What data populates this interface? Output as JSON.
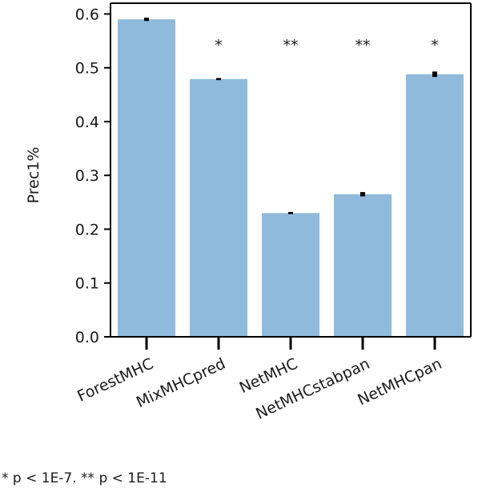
{
  "chart_data": {
    "type": "bar",
    "title": "",
    "xlabel": "",
    "ylabel": "Prec1%",
    "ylim": [
      0,
      0.62
    ],
    "yticks": [
      "0.0",
      "0.1",
      "0.2",
      "0.3",
      "0.4",
      "0.5",
      "0.6"
    ],
    "categories": [
      "ForestMHC",
      "MixMHCpred",
      "NetMHC",
      "NetMHCstabpan",
      "NetMHCpan"
    ],
    "values": [
      0.59,
      0.479,
      0.23,
      0.265,
      0.488
    ],
    "error": [
      0.003,
      0.002,
      0.002,
      0.004,
      0.005
    ],
    "significance": [
      "",
      "*",
      "**",
      "**",
      "*"
    ],
    "grid": false,
    "bar_color": "#8fbadb",
    "errorbar_color": "#000000"
  },
  "footnote": "* p < 1E-7. ** p < 1E-11"
}
